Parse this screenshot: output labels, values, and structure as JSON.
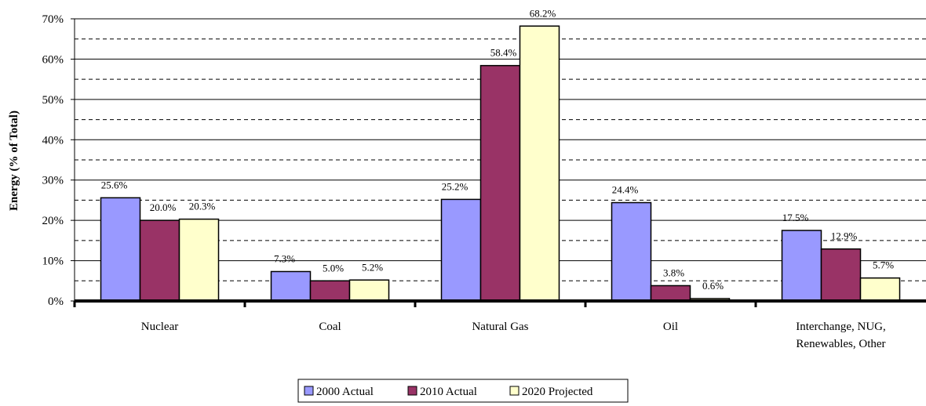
{
  "chart_data": {
    "type": "bar",
    "y_label": "Energy (% of Total)",
    "categories": [
      "Nuclear",
      "Coal",
      "Natural Gas",
      "Oil",
      "Interchange, NUG,\nRenewables, Other"
    ],
    "series": [
      {
        "name": "2000 Actual",
        "color": "#9999ff",
        "values": [
          25.6,
          7.3,
          25.2,
          24.4,
          17.5
        ],
        "value_labels": [
          "25.6%",
          "7.3%",
          "25.2%",
          "24.4%",
          "17.5%"
        ]
      },
      {
        "name": "2010 Actual",
        "color": "#993366",
        "values": [
          20.0,
          5.0,
          58.4,
          3.8,
          12.9
        ],
        "value_labels": [
          "20.0%",
          "5.0%",
          "58.4%",
          "3.8%",
          "12.9%"
        ]
      },
      {
        "name": "2020 Projected",
        "color": "#ffffcc",
        "values": [
          20.3,
          5.2,
          68.2,
          0.6,
          5.7
        ],
        "value_labels": [
          "20.3%",
          "5.2%",
          "68.2%",
          "0.6%",
          "5.7%"
        ]
      }
    ],
    "ylim": [
      0,
      70
    ],
    "yticks": [
      {
        "value": 0,
        "label": "0%"
      },
      {
        "value": 10,
        "label": "10%"
      },
      {
        "value": 20,
        "label": "20%"
      },
      {
        "value": 30,
        "label": "30%"
      },
      {
        "value": 40,
        "label": "40%"
      },
      {
        "value": 50,
        "label": "50%"
      },
      {
        "value": 60,
        "label": "60%"
      },
      {
        "value": 70,
        "label": "70%"
      }
    ],
    "yminorticks": [
      5,
      15,
      25,
      35,
      45,
      55,
      65
    ],
    "grid": true,
    "legend": "bottom"
  }
}
